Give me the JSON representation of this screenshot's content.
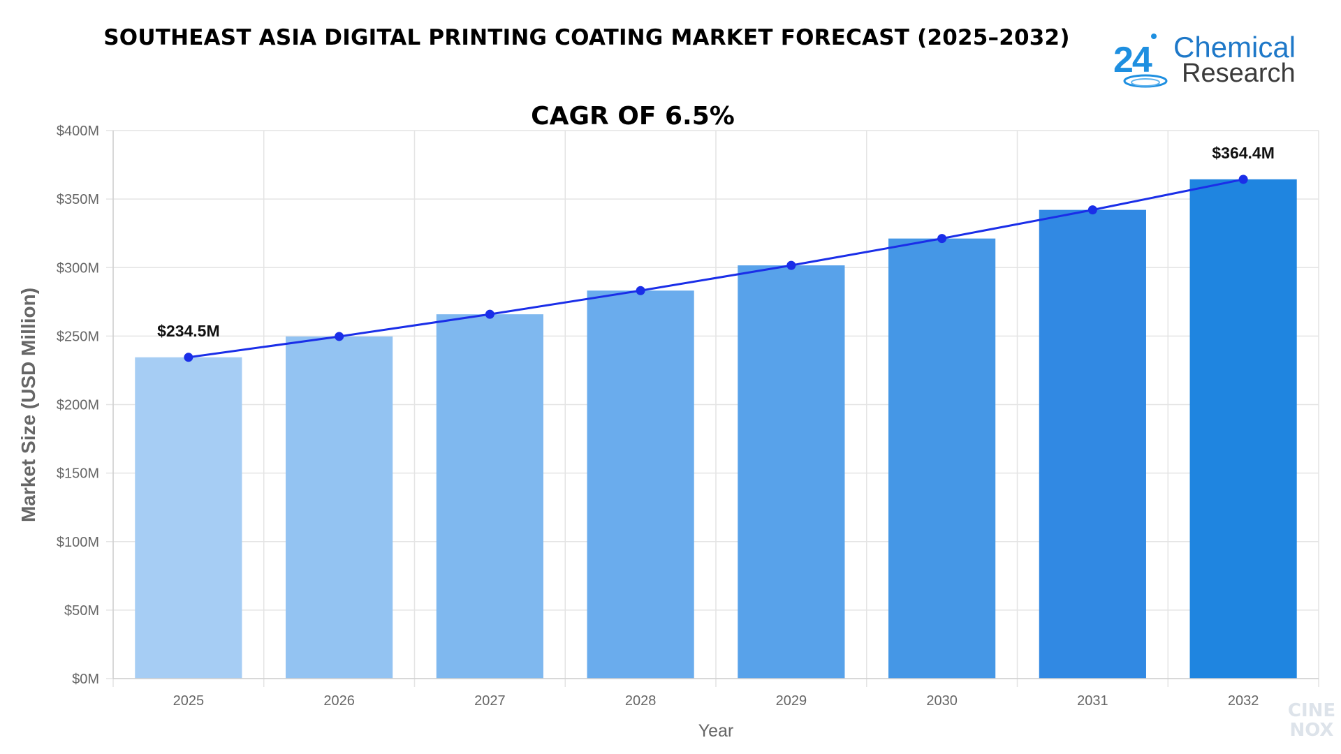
{
  "chart_data": {
    "type": "bar",
    "title": "SOUTHEAST ASIA DIGITAL PRINTING COATING MARKET FORECAST (2025–2032)",
    "subtitle": "CAGR OF 6.5%",
    "xlabel": "Year",
    "ylabel": "Market Size (USD Million)",
    "categories": [
      "2025",
      "2026",
      "2027",
      "2028",
      "2029",
      "2030",
      "2031",
      "2032"
    ],
    "values": [
      234.5,
      249.7,
      265.9,
      283.2,
      301.6,
      321.2,
      342.1,
      364.4
    ],
    "line_values": [
      234.5,
      249.7,
      265.9,
      283.2,
      301.6,
      321.2,
      342.1,
      364.4
    ],
    "ylim": [
      0,
      400
    ],
    "yticks": [
      0,
      50,
      100,
      150,
      200,
      250,
      300,
      350,
      400
    ],
    "ytick_labels": [
      "$0M",
      "$50M",
      "$100M",
      "$150M",
      "$200M",
      "$250M",
      "$300M",
      "$350M",
      "$400M"
    ],
    "data_labels": [
      {
        "index": 0,
        "text": "$234.5M"
      },
      {
        "index": 7,
        "text": "$364.4M"
      }
    ],
    "bar_colors": [
      "#a6cdf4",
      "#93c3f2",
      "#7fb8ef",
      "#6aaced",
      "#58a2ea",
      "#4597e6",
      "#3189e3",
      "#1f85e0"
    ],
    "line_color": "#1a2ee8",
    "grid": true,
    "legend": "none"
  },
  "logo": {
    "number": "24",
    "word1": "Chemical",
    "word2": "Research"
  },
  "watermark": {
    "line1": "CINE",
    "line2": "NOX"
  }
}
